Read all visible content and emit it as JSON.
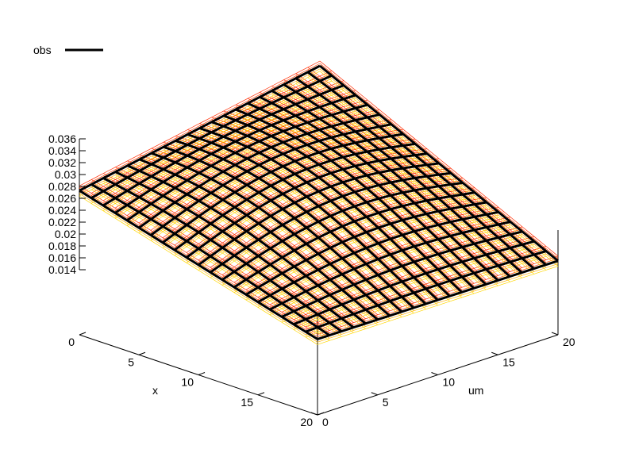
{
  "chart_data": {
    "type": "surface3d",
    "title": "",
    "legend": {
      "placement": "top-left",
      "entries": [
        {
          "name": "obs",
          "color": "#000000"
        }
      ]
    },
    "axes": {
      "x": {
        "label": "x",
        "range": [
          0,
          20
        ],
        "ticks": [
          "0",
          "5",
          "10",
          "15",
          "20"
        ]
      },
      "y": {
        "label": "um",
        "range": [
          0,
          20
        ],
        "ticks": [
          "0",
          "5",
          "10",
          "15",
          "20"
        ]
      },
      "z": {
        "range": [
          0.014,
          0.036
        ],
        "ticks": [
          "0.014",
          "0.016",
          "0.018",
          "0.02",
          "0.022",
          "0.024",
          "0.026",
          "0.028",
          "0.03",
          "0.032",
          "0.034",
          "0.036"
        ]
      }
    },
    "grid_n": 20,
    "corner_values": {
      "x0_um0": 0.0273,
      "x20_um0": 0.0158,
      "x0_um20": 0.0348,
      "x20_um20": 0.0155
    },
    "series": [
      {
        "name": "obs",
        "color": "#000000",
        "z_offset": 0.0
      },
      {
        "color": "#ff2a00",
        "z_offset": 0.0008
      },
      {
        "color": "#ff4000",
        "z_offset": 0.0004
      },
      {
        "color": "#ff7f00",
        "z_offset": 0.0
      },
      {
        "color": "#ffb000",
        "z_offset": -0.0005
      },
      {
        "color": "#ffd700",
        "z_offset": -0.0009
      }
    ]
  }
}
